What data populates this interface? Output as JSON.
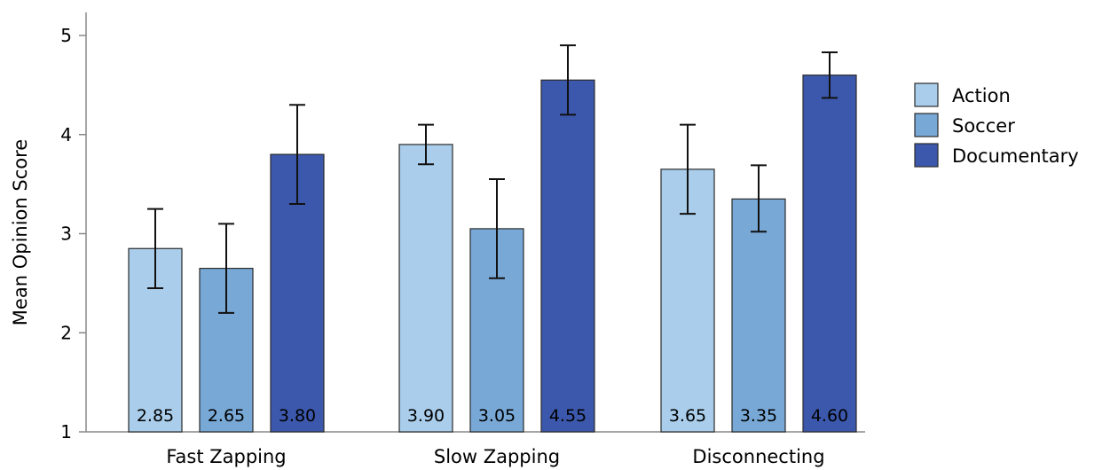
{
  "chart_data": {
    "type": "bar",
    "title": "",
    "xlabel": "",
    "ylabel": "Mean Opinion Score",
    "ylim": [
      1,
      5
    ],
    "yticks": [
      1,
      2,
      3,
      4,
      5
    ],
    "categories": [
      "Fast Zapping",
      "Slow Zapping",
      "Disconnecting"
    ],
    "series": [
      {
        "name": "Action",
        "color": "#a9cdea",
        "values": [
          2.85,
          3.9,
          3.65
        ],
        "value_labels": [
          "2.85",
          "3.90",
          "3.65"
        ],
        "error_low": [
          2.45,
          3.7,
          3.2
        ],
        "error_high": [
          3.25,
          4.1,
          4.1
        ]
      },
      {
        "name": "Soccer",
        "color": "#78a8d6",
        "values": [
          2.65,
          3.05,
          3.35
        ],
        "value_labels": [
          "2.65",
          "3.05",
          "3.35"
        ],
        "error_low": [
          2.2,
          2.55,
          3.02
        ],
        "error_high": [
          3.1,
          3.55,
          3.69
        ]
      },
      {
        "name": "Documentary",
        "color": "#3c58ac",
        "values": [
          3.8,
          4.55,
          4.6
        ],
        "value_labels": [
          "3.80",
          "4.55",
          "4.60"
        ],
        "error_low": [
          3.3,
          4.2,
          4.37
        ],
        "error_high": [
          4.3,
          4.9,
          4.83
        ]
      }
    ],
    "legend": {
      "position": "right"
    },
    "grid": false
  }
}
